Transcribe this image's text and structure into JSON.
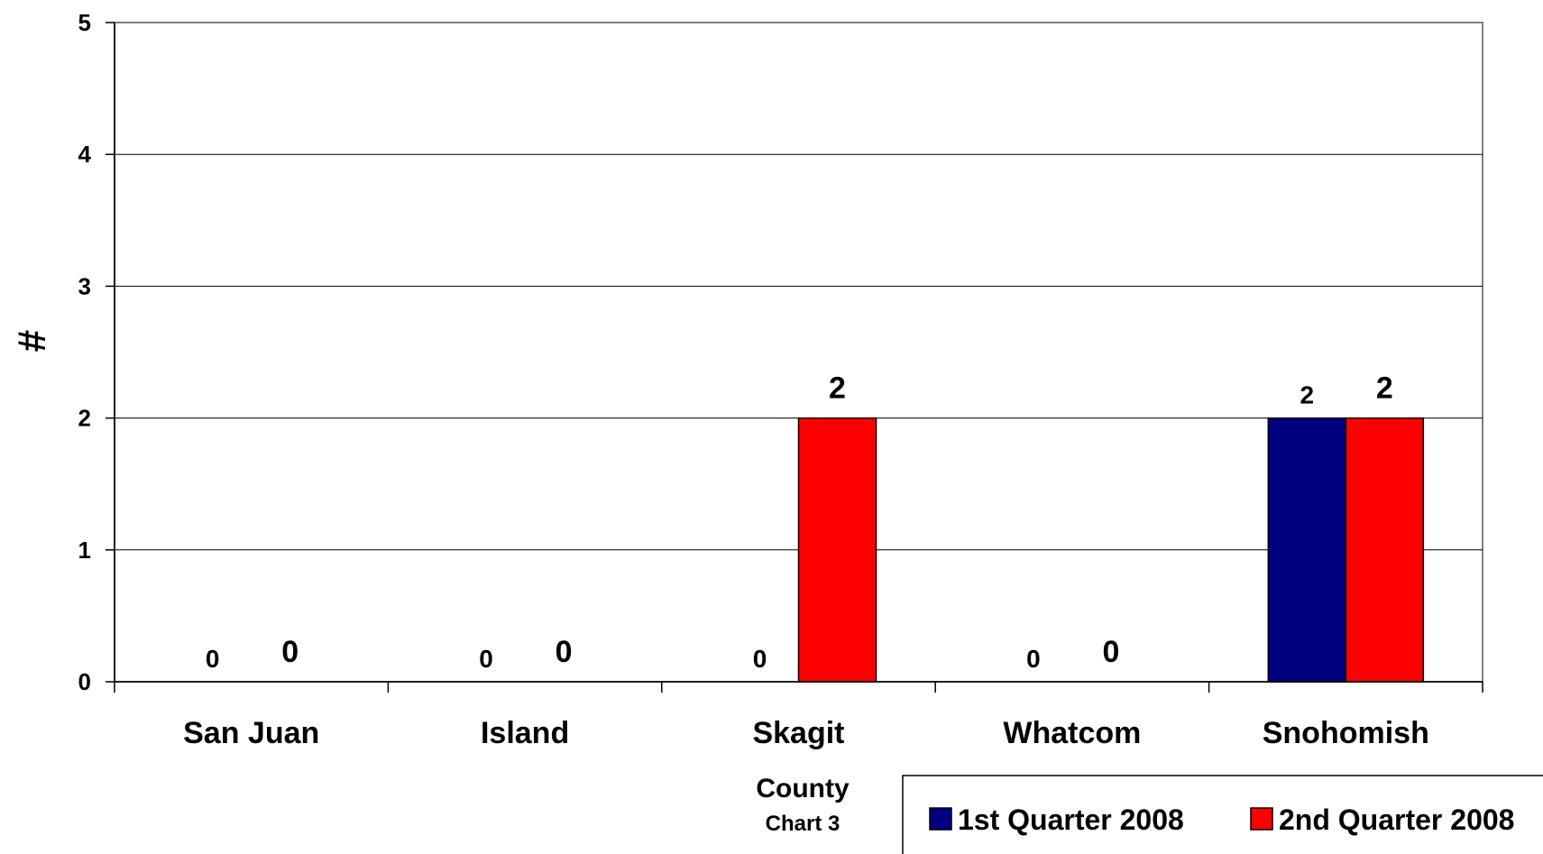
{
  "chart_data": {
    "type": "bar",
    "categories": [
      "San Juan",
      "Island",
      "Skagit",
      "Whatcom",
      "Snohomish"
    ],
    "series": [
      {
        "name": "1st Quarter 2008",
        "values": [
          0,
          0,
          0,
          0,
          2
        ],
        "color": "#000080"
      },
      {
        "name": "2nd Quarter 2008",
        "values": [
          0,
          0,
          2,
          0,
          2
        ],
        "color": "#FF0000"
      }
    ],
    "yticks": [
      "0",
      "1",
      "2",
      "3",
      "4",
      "5"
    ],
    "ylim": [
      0,
      5
    ],
    "ylabel": "#",
    "xlabel": "County",
    "caption": "Chart 3",
    "grid": true,
    "legend": "bottom-right"
  }
}
